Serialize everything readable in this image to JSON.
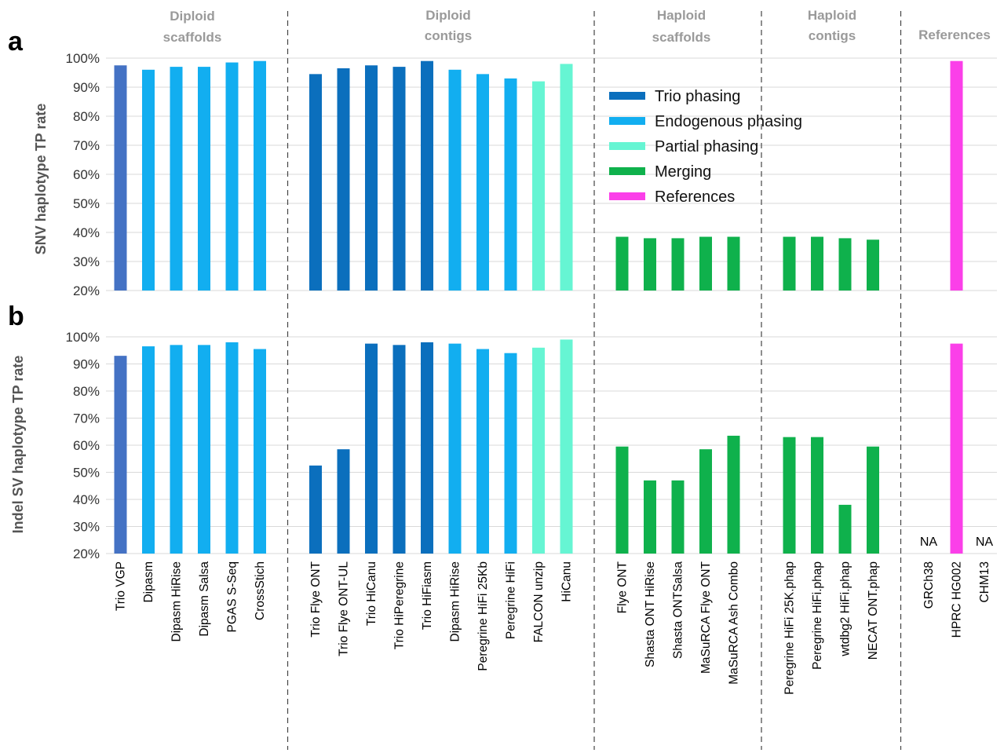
{
  "chart_data": [
    {
      "panel": "a",
      "type": "bar",
      "ylabel": "SNV haplotype TP rate",
      "ylim": [
        20,
        100
      ],
      "yticks": [
        "20%",
        "30%",
        "40%",
        "50%",
        "60%",
        "70%",
        "80%",
        "90%",
        "100%"
      ],
      "legend": {
        "placement": "top-right",
        "entries": [
          {
            "label": "Trio phasing",
            "color": "#0b6fbd"
          },
          {
            "label": "Endogenous phasing",
            "color": "#12aef0"
          },
          {
            "label": "Partial phasing",
            "color": "#66f5d3"
          },
          {
            "label": "Merging",
            "color": "#0fb14c"
          },
          {
            "label": "References",
            "color": "#fb3fe9"
          }
        ]
      },
      "values": [
        97.5,
        96,
        97,
        97,
        98.5,
        99,
        null,
        94.5,
        96.5,
        97.5,
        97,
        99,
        96,
        94.5,
        93,
        92,
        98,
        null,
        38.5,
        38,
        38,
        38.5,
        38.5,
        null,
        38.5,
        38.5,
        38,
        37.5,
        null,
        null,
        99,
        null
      ]
    },
    {
      "panel": "b",
      "type": "bar",
      "ylabel": "Indel SV haplotype TP rate",
      "ylim": [
        20,
        100
      ],
      "yticks": [
        "20%",
        "30%",
        "40%",
        "50%",
        "60%",
        "70%",
        "80%",
        "90%",
        "100%"
      ],
      "annotations": [
        "NA",
        "NA"
      ],
      "values": [
        93,
        96.5,
        97,
        97,
        98,
        95.5,
        null,
        52.5,
        58.5,
        97.5,
        97,
        98,
        97.5,
        95.5,
        94,
        96,
        99,
        null,
        59.5,
        47,
        47,
        58.5,
        63.5,
        null,
        63,
        63,
        38,
        59.5,
        null,
        "NA",
        97.5,
        "NA"
      ]
    }
  ],
  "categories": [
    "Trio VGP",
    "Dipasm",
    "Dipasm HiRise",
    "Dipasm Salsa",
    "PGAS S-Seq",
    "CrossStich",
    "",
    "Trio Flye ONT",
    "Trio Flye ONT-UL",
    "Trio HiCanu",
    "Trio HiPeregrine",
    "Trio HiFiasm",
    "Dipasm HiRise",
    "Peregrine HiFi 25Kb",
    "Peregrine HiFi",
    "FALCON unzip",
    "HiCanu",
    "",
    "Flye ONT",
    "Shasta ONT HiRise",
    "Shasta ONTSalsa",
    "MaSuRCA Flye ONT",
    "MaSuRCA Ash Combo",
    "",
    "Peregrine HiFi 25K.phap",
    "Peregrine HiFi.phap",
    "wtdbg2 HiFi.phap",
    "NECAT ONT.phap",
    "",
    "GRCh38",
    "HPRC HG002",
    "CHM13"
  ],
  "bar_colors": [
    "#4472c4",
    "#12aef0",
    "#12aef0",
    "#12aef0",
    "#12aef0",
    "#12aef0",
    null,
    "#0b6fbd",
    "#0b6fbd",
    "#0b6fbd",
    "#0b6fbd",
    "#0b6fbd",
    "#12aef0",
    "#12aef0",
    "#12aef0",
    "#66f5d3",
    "#66f5d3",
    null,
    "#0fb14c",
    "#0fb14c",
    "#0fb14c",
    "#0fb14c",
    "#0fb14c",
    null,
    "#0fb14c",
    "#0fb14c",
    "#0fb14c",
    "#0fb14c",
    null,
    "#fb3fe9",
    "#fb3fe9",
    "#fb3fe9"
  ],
  "groups": [
    {
      "line1": "Diploid",
      "line2": "scaffolds"
    },
    {
      "line1": "Diploid",
      "line2": "contigs"
    },
    {
      "line1": "Haploid",
      "line2": "scaffolds"
    },
    {
      "line1": "Haploid",
      "line2": "contigs"
    },
    {
      "line1": "References",
      "line2": ""
    }
  ],
  "panel_letters": [
    "a",
    "b"
  ]
}
